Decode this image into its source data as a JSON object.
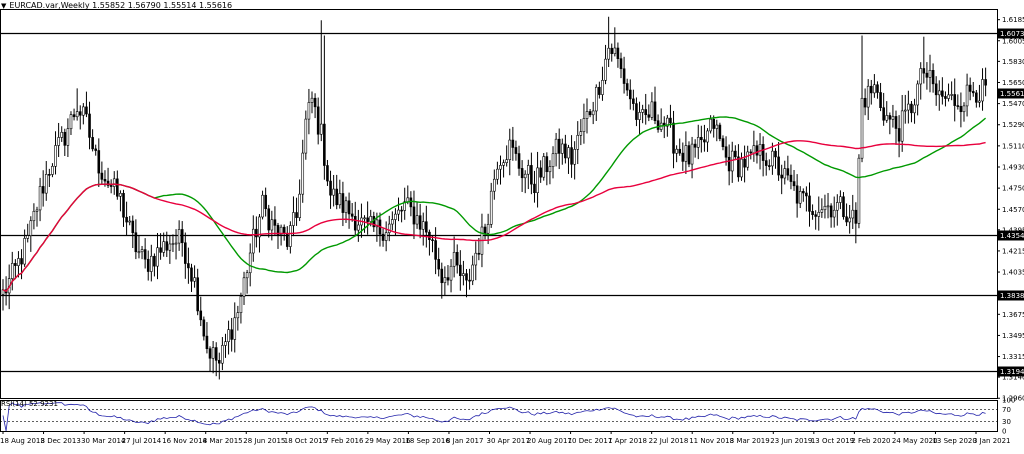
{
  "header": {
    "symbol": "EURCAD.var,Weekly",
    "ohlc": "1.55852 1.56790 1.55514 1.55616"
  },
  "rsi_label": "RSI(14) 52.9231",
  "chart_data": {
    "type": "candlestick",
    "title": "EURCAD.var,Weekly",
    "ylim": [
      1.2962,
      1.6276
    ],
    "y_ticks": [
      "1.61850",
      "1.60055",
      "1.58300",
      "1.56500",
      "1.54700",
      "1.52900",
      "1.51100",
      "1.49300",
      "1.47500",
      "1.45700",
      "1.43950",
      "1.42150",
      "1.40350",
      "1.38550",
      "1.36750",
      "1.34950",
      "1.33150",
      "1.31400",
      "1.29600"
    ],
    "x_ticks": [
      "18 Aug 2013",
      "8 Dec 2013",
      "30 Mar 2014",
      "27 Jul 2014",
      "16 Nov 2014",
      "8 Mar 2015",
      "28 Jun 2015",
      "18 Oct 2015",
      "7 Feb 2016",
      "29 May 2016",
      "18 Sep 2016",
      "8 Jan 2017",
      "30 Apr 2017",
      "20 Aug 2017",
      "10 Dec 2017",
      "1 Apr 2018",
      "22 Jul 2018",
      "11 Nov 2018",
      "3 Mar 2019",
      "23 Jun 2019",
      "13 Oct 2019",
      "2 Feb 2020",
      "24 May 2020",
      "13 Sep 2020",
      "3 Jan 2021"
    ],
    "horizontal_levels": [
      "1.60735",
      "1.43540",
      "1.38381",
      "1.31947"
    ],
    "current_price": "1.55616",
    "price_anchors": [
      [
        0,
        1.385
      ],
      [
        4,
        1.405
      ],
      [
        8,
        1.43
      ],
      [
        12,
        1.47
      ],
      [
        16,
        1.5
      ],
      [
        20,
        1.52
      ],
      [
        24,
        1.545
      ],
      [
        27,
        1.53
      ],
      [
        30,
        1.5
      ],
      [
        34,
        1.48
      ],
      [
        38,
        1.465
      ],
      [
        42,
        1.43
      ],
      [
        46,
        1.41
      ],
      [
        50,
        1.42
      ],
      [
        54,
        1.43
      ],
      [
        58,
        1.43
      ],
      [
        62,
        1.395
      ],
      [
        66,
        1.34
      ],
      [
        70,
        1.325
      ],
      [
        73,
        1.35
      ],
      [
        76,
        1.37
      ],
      [
        80,
        1.42
      ],
      [
        84,
        1.46
      ],
      [
        88,
        1.44
      ],
      [
        92,
        1.43
      ],
      [
        95,
        1.45
      ],
      [
        98,
        1.53
      ],
      [
        100,
        1.55
      ],
      [
        103,
        1.52
      ],
      [
        106,
        1.47
      ],
      [
        110,
        1.46
      ],
      [
        114,
        1.45
      ],
      [
        118,
        1.44
      ],
      [
        122,
        1.44
      ],
      [
        126,
        1.445
      ],
      [
        130,
        1.46
      ],
      [
        134,
        1.45
      ],
      [
        138,
        1.435
      ],
      [
        142,
        1.4
      ],
      [
        146,
        1.41
      ],
      [
        150,
        1.39
      ],
      [
        153,
        1.42
      ],
      [
        156,
        1.44
      ],
      [
        160,
        1.5
      ],
      [
        164,
        1.51
      ],
      [
        168,
        1.49
      ],
      [
        172,
        1.48
      ],
      [
        176,
        1.495
      ],
      [
        180,
        1.51
      ],
      [
        184,
        1.5
      ],
      [
        188,
        1.53
      ],
      [
        192,
        1.555
      ],
      [
        196,
        1.595
      ],
      [
        198,
        1.59
      ],
      [
        202,
        1.56
      ],
      [
        206,
        1.53
      ],
      [
        210,
        1.54
      ],
      [
        214,
        1.53
      ],
      [
        218,
        1.51
      ],
      [
        222,
        1.5
      ],
      [
        226,
        1.51
      ],
      [
        230,
        1.53
      ],
      [
        234,
        1.5
      ],
      [
        238,
        1.495
      ],
      [
        242,
        1.5
      ],
      [
        246,
        1.505
      ],
      [
        250,
        1.495
      ],
      [
        254,
        1.48
      ],
      [
        258,
        1.465
      ],
      [
        262,
        1.46
      ],
      [
        266,
        1.46
      ],
      [
        270,
        1.46
      ],
      [
        274,
        1.455
      ],
      [
        276,
        1.445
      ],
      [
        278,
        1.55
      ],
      [
        282,
        1.56
      ],
      [
        286,
        1.535
      ],
      [
        290,
        1.525
      ],
      [
        294,
        1.545
      ],
      [
        298,
        1.575
      ],
      [
        302,
        1.555
      ],
      [
        306,
        1.55
      ],
      [
        310,
        1.55
      ],
      [
        314,
        1.56
      ],
      [
        318,
        1.556
      ]
    ],
    "series": [
      {
        "name": "",
        "type": "moving-average",
        "color": "#009900"
      },
      {
        "name": "",
        "type": "moving-average",
        "color": "#e8003d"
      }
    ],
    "rsi": {
      "ylim": [
        0,
        100
      ],
      "y_ticks": [
        "100",
        "70",
        "30",
        "0"
      ],
      "levels": [
        70,
        30
      ],
      "color": "#2222aa"
    }
  },
  "colors": {
    "candle": "#000000",
    "level_line": "#000000",
    "label_bg": "#000000",
    "ma_fast": "#009900",
    "ma_slow": "#e8003d",
    "rsi": "#2222aa"
  }
}
